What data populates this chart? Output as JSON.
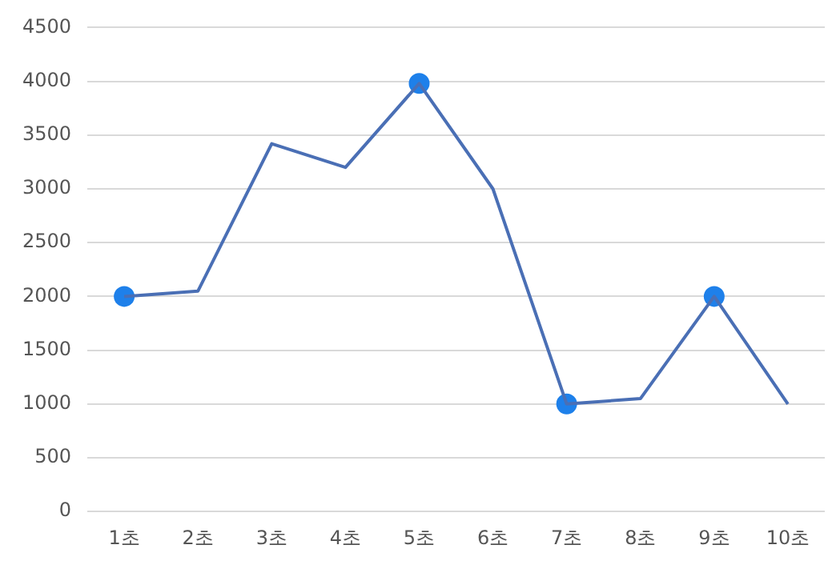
{
  "chart_data": {
    "type": "line",
    "categories": [
      "1초",
      "2초",
      "3초",
      "4초",
      "5초",
      "6초",
      "7초",
      "8초",
      "9초",
      "10초"
    ],
    "series": [
      {
        "color": "#4a6fb5",
        "marker": "none",
        "values": [
          2000,
          2050,
          3420,
          3200,
          3980,
          3000,
          1000,
          1050,
          2000,
          1000
        ]
      },
      {
        "type": "scatter",
        "color": "#1e80ea",
        "marker": "circle",
        "x": [
          "1초",
          "5초",
          "7초",
          "9초"
        ],
        "values": [
          2000,
          3980,
          1000,
          2000
        ]
      }
    ],
    "ylim": [
      0,
      4500
    ],
    "yticks": [
      0,
      500,
      1000,
      1500,
      2000,
      2500,
      3000,
      3500,
      4000,
      4500
    ],
    "grid": "y",
    "line_style": "solid"
  }
}
